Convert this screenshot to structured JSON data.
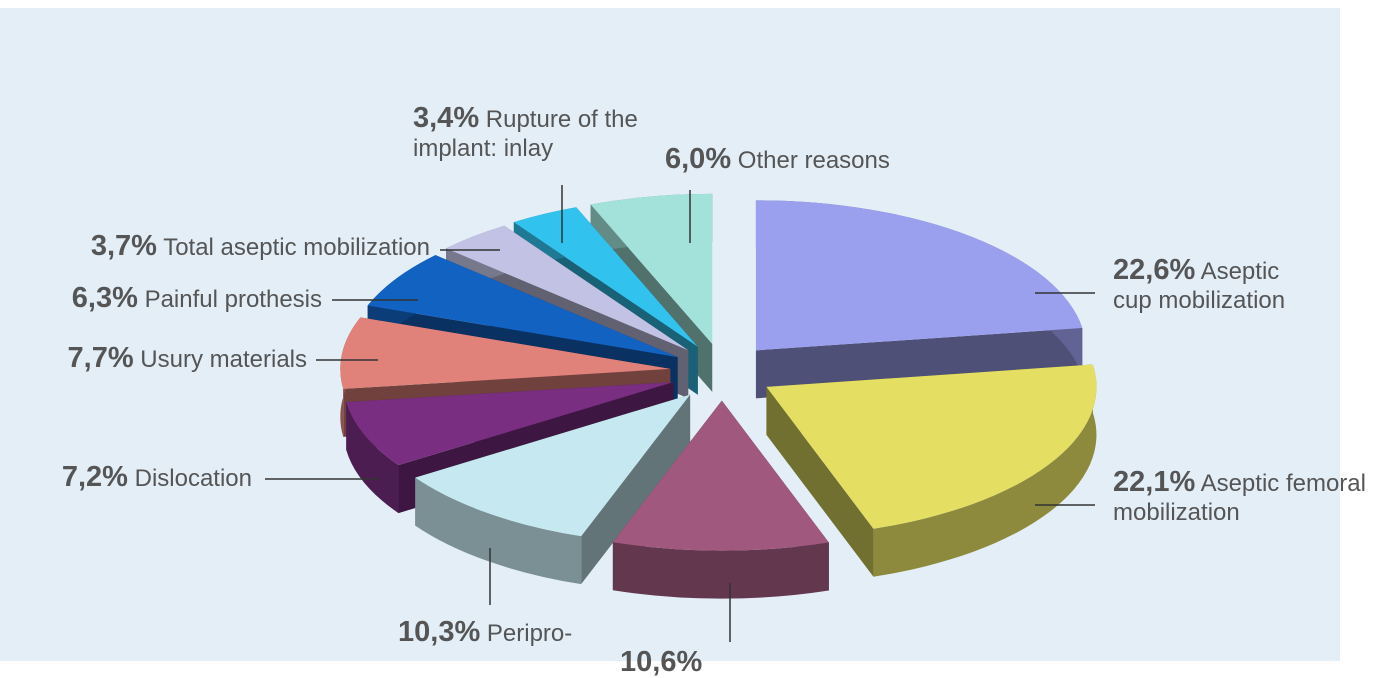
{
  "chart_data": {
    "type": "pie",
    "categories": [
      "Aseptic cup mobilization",
      "Aseptic femoral mobilization",
      null,
      "Peripro-",
      "Dislocation",
      "Usury materials",
      "Painful prothesis",
      "Total aseptic mobilization",
      "Rupture of the implant: inlay",
      "Other reasons"
    ],
    "values": [
      22.6,
      22.1,
      10.6,
      10.3,
      7.2,
      7.7,
      6.3,
      3.7,
      3.4,
      6.0
    ],
    "value_labels": [
      "22,6%",
      "22,1%",
      "10,6%",
      "10,3%",
      "7,2%",
      "7,7%",
      "6,3%",
      "3,7%",
      "3,4%",
      "6,0%"
    ],
    "colors": [
      "#9ba0ee",
      "#e4df62",
      "#a0587e",
      "#c6e8f0",
      "#7a2e82",
      "#e0827a",
      "#1262c2",
      "#c2c2e4",
      "#32c2ee",
      "#a2e2da"
    ]
  }
}
